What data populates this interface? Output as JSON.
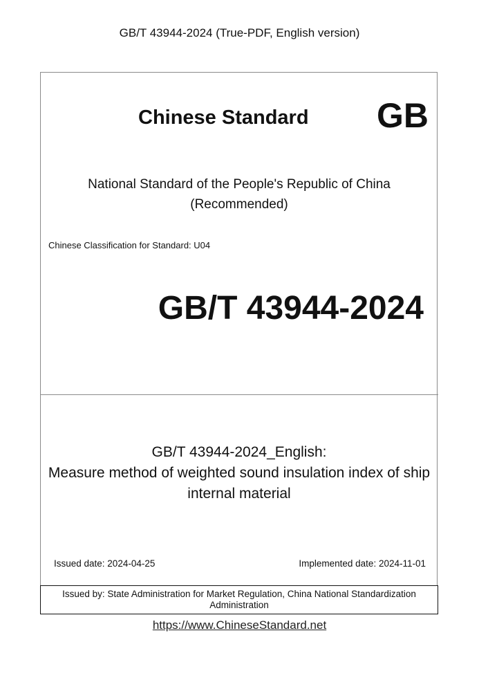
{
  "header": "GB/T 43944-2024 (True-PDF, English version)",
  "cover": {
    "brand": "Chinese Standard",
    "gb_mark": "GB",
    "national_line1": "National Standard of the People's Republic of China",
    "national_line2": "(Recommended)",
    "classification": "Chinese Classification for Standard: U04",
    "code": "GB/T 43944-2024",
    "title_line1": "GB/T 43944-2024_English:",
    "title_line2": "Measure method of weighted sound insulation index of ship",
    "title_line3": "internal material",
    "issued_date": "Issued date: 2024-04-25",
    "implemented_date": "Implemented date: 2024-11-01",
    "issued_by": "Issued by: State Administration for Market Regulation, China National Standardization Administration"
  },
  "footer_link": "https://www.ChineseStandard.net"
}
